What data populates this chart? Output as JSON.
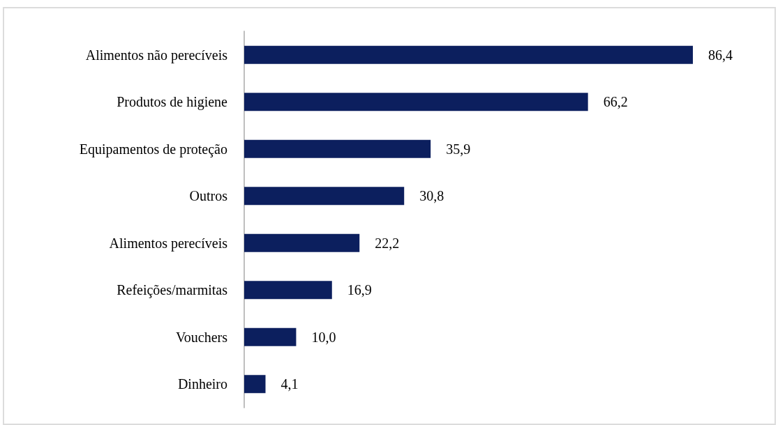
{
  "chart_data": {
    "type": "bar",
    "orientation": "horizontal",
    "categories": [
      "Alimentos não perecíveis",
      "Produtos de higiene",
      "Equipamentos de proteção",
      "Outros",
      "Alimentos perecíveis",
      "Refeições/marmitas",
      "Vouchers",
      "Dinheiro"
    ],
    "values": [
      86.4,
      66.2,
      35.9,
      30.8,
      22.2,
      16.9,
      10.0,
      4.1
    ],
    "value_labels": [
      "86,4",
      "66,2",
      "35,9",
      "30,8",
      "22,2",
      "16,9",
      "10,0",
      "4,1"
    ],
    "color": "#0c1f5e"
  }
}
